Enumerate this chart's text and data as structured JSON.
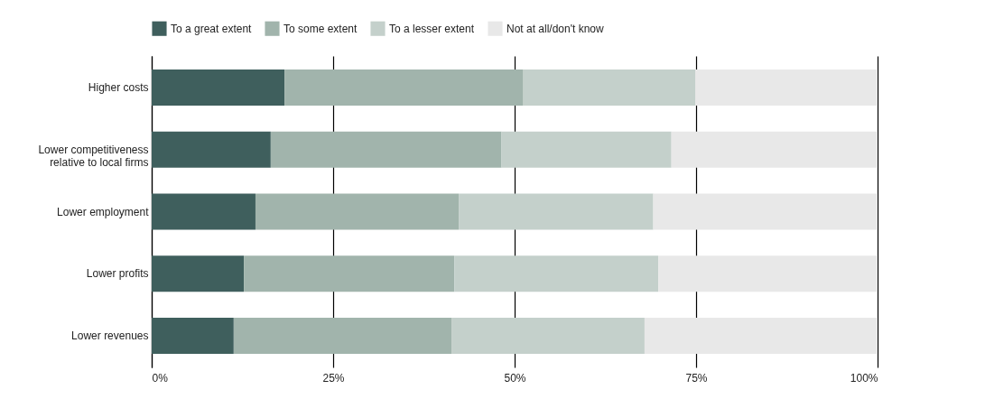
{
  "chart_data": {
    "type": "bar",
    "orientation": "horizontal",
    "stacked": true,
    "categories": [
      "Higher costs",
      "Lower competitiveness\nrelative to local firms",
      "Lower employment",
      "Lower profits",
      "Lower revenues"
    ],
    "series": [
      {
        "name": "To a great extent",
        "color": "#3f5f5d",
        "values": [
          18.3,
          16.4,
          14.3,
          12.7,
          11.3
        ]
      },
      {
        "name": "To some extent",
        "color": "#a1b4ac",
        "values": [
          32.9,
          31.8,
          28.0,
          29.0,
          30.0
        ]
      },
      {
        "name": "To a lesser extent",
        "color": "#c4d0cb",
        "values": [
          23.7,
          23.4,
          26.8,
          28.1,
          26.6
        ]
      },
      {
        "name": "Not at all/don't know",
        "color": "#e8e8e8",
        "values": [
          25.1,
          28.4,
          30.9,
          30.2,
          32.1
        ]
      }
    ],
    "xlim": [
      0,
      100
    ],
    "xticks": [
      {
        "value": 0,
        "label": "0%"
      },
      {
        "value": 25,
        "label": "25%"
      },
      {
        "value": 50,
        "label": "50%"
      },
      {
        "value": 75,
        "label": "75%"
      },
      {
        "value": 100,
        "label": "100%"
      }
    ],
    "grid": "x",
    "legend": "top"
  }
}
